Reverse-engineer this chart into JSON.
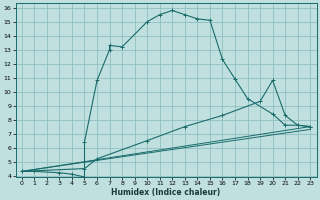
{
  "xlabel": "Humidex (Indice chaleur)",
  "bg_color": "#c0e0e0",
  "grid_color": "#90c0c0",
  "line_color": "#1a6b6b",
  "xlim": [
    -0.5,
    23.5
  ],
  "ylim": [
    3.9,
    16.3
  ],
  "xticks": [
    0,
    1,
    2,
    3,
    4,
    5,
    6,
    7,
    8,
    9,
    10,
    11,
    12,
    13,
    14,
    15,
    16,
    17,
    18,
    19,
    20,
    21,
    22,
    23
  ],
  "yticks": [
    4,
    5,
    6,
    7,
    8,
    9,
    10,
    11,
    12,
    13,
    14,
    15,
    16
  ],
  "curve1": {
    "x": [
      0,
      1,
      3,
      4,
      5,
      5,
      6,
      7,
      7,
      8,
      10,
      11,
      12,
      13,
      14,
      15,
      16,
      17,
      18,
      20,
      21,
      22,
      23
    ],
    "y": [
      4.3,
      4.3,
      4.2,
      4.1,
      3.9,
      6.4,
      10.8,
      13.0,
      13.3,
      13.2,
      15.0,
      15.5,
      15.8,
      15.5,
      15.2,
      15.1,
      12.3,
      10.9,
      9.5,
      8.4,
      7.6,
      7.6,
      7.5
    ]
  },
  "curve2": {
    "x": [
      0,
      5,
      6,
      10,
      13,
      16,
      19,
      20,
      21,
      22,
      23
    ],
    "y": [
      4.3,
      4.5,
      5.2,
      6.5,
      7.5,
      8.3,
      9.3,
      10.8,
      8.3,
      7.6,
      7.5
    ]
  },
  "curve3": {
    "x": [
      0,
      23
    ],
    "y": [
      4.3,
      7.5
    ]
  },
  "curve4": {
    "x": [
      0,
      23
    ],
    "y": [
      4.3,
      7.5
    ]
  }
}
